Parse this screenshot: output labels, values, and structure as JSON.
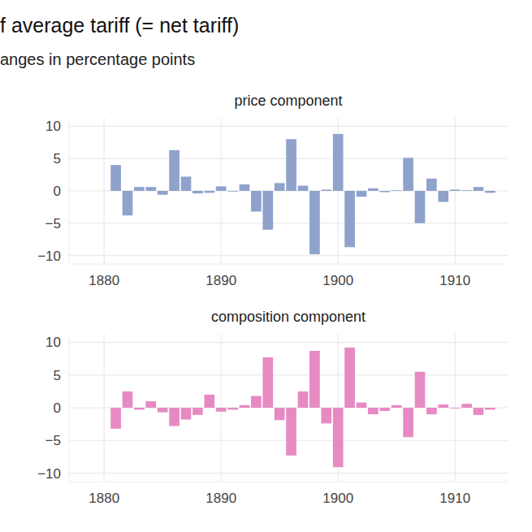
{
  "figure": {
    "title": "f average tariff (= net tariff)",
    "subtitle": "anges in percentage points"
  },
  "chart_data": [
    {
      "type": "bar",
      "title": "price component",
      "color": "#8fa2cc",
      "x": [
        1881,
        1882,
        1883,
        1884,
        1885,
        1886,
        1887,
        1888,
        1889,
        1890,
        1891,
        1892,
        1893,
        1894,
        1895,
        1896,
        1897,
        1898,
        1899,
        1900,
        1901,
        1902,
        1903,
        1904,
        1905,
        1906,
        1907,
        1908,
        1909,
        1910,
        1911,
        1912,
        1913
      ],
      "values": [
        4.0,
        -3.8,
        0.6,
        0.6,
        -0.6,
        6.3,
        2.2,
        -0.4,
        -0.3,
        0.7,
        -0.1,
        1.0,
        -3.2,
        -6.0,
        1.2,
        8.0,
        0.8,
        -9.8,
        0.2,
        8.8,
        -8.7,
        -0.9,
        0.4,
        -0.2,
        0.1,
        5.1,
        -5.0,
        1.9,
        -1.7,
        0.2,
        0.1,
        0.6,
        -0.3
      ],
      "xlim": [
        1877,
        1914.5
      ],
      "xticks": [
        1880,
        1890,
        1900,
        1910
      ],
      "ylim": [
        -11.3,
        11.3
      ],
      "yticks": [
        -10,
        -5,
        0,
        5,
        10
      ],
      "grid": true
    },
    {
      "type": "bar",
      "title": "composition component",
      "color": "#e78ac3",
      "x": [
        1881,
        1882,
        1883,
        1884,
        1885,
        1886,
        1887,
        1888,
        1889,
        1890,
        1891,
        1892,
        1893,
        1894,
        1895,
        1896,
        1897,
        1898,
        1899,
        1900,
        1901,
        1902,
        1903,
        1904,
        1905,
        1906,
        1907,
        1908,
        1909,
        1910,
        1911,
        1912,
        1913
      ],
      "values": [
        -3.2,
        2.5,
        -0.3,
        1.0,
        -0.7,
        -2.8,
        -1.8,
        -1.1,
        2.0,
        -0.6,
        -0.3,
        0.4,
        1.8,
        7.7,
        -1.9,
        -7.3,
        2.5,
        8.7,
        -2.4,
        -9.1,
        9.2,
        0.8,
        -1.0,
        -0.5,
        0.4,
        -4.5,
        5.5,
        -1.0,
        0.5,
        -0.1,
        0.6,
        -1.1,
        -0.3
      ],
      "xlim": [
        1877,
        1914.5
      ],
      "xticks": [
        1880,
        1890,
        1900,
        1910
      ],
      "ylim": [
        -11.3,
        11.3
      ],
      "yticks": [
        -10,
        -5,
        0,
        5,
        10
      ],
      "grid": true
    }
  ]
}
